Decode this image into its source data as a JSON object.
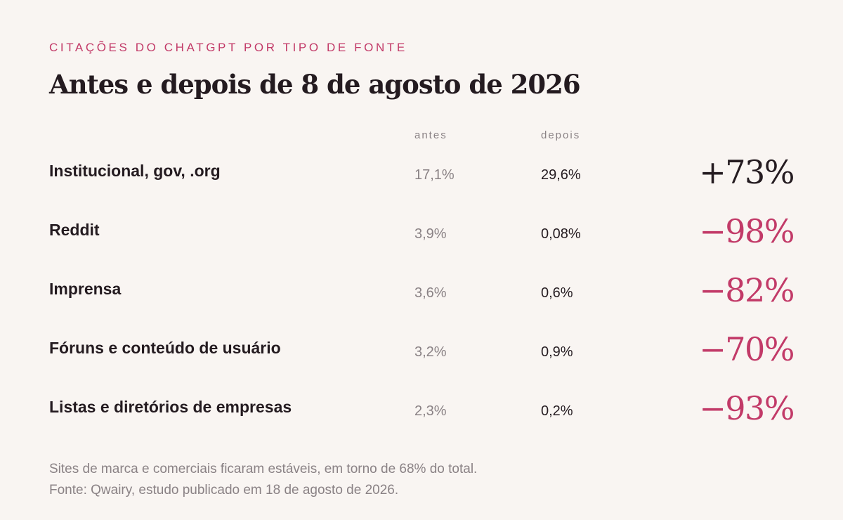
{
  "eyebrow": "CITAÇÕES DO CHATGPT POR TIPO DE FONTE",
  "title": "Antes e depois de 8 de agosto de 2026",
  "colors": {
    "background": "#f9f5f2",
    "text": "#241b20",
    "accent": "#c23a68",
    "muted": "#8a8285"
  },
  "chart_data": {
    "type": "table",
    "columns": [
      "antes",
      "depois"
    ],
    "rows": [
      {
        "label": "Institucional, gov, .org",
        "antes": "17,1%",
        "depois": "29,6%",
        "change": "+73%",
        "direction": "up"
      },
      {
        "label": "Reddit",
        "antes": "3,9%",
        "depois": "0,08%",
        "change": "−98%",
        "direction": "down"
      },
      {
        "label": "Imprensa",
        "antes": "3,6%",
        "depois": "0,6%",
        "change": "−82%",
        "direction": "down"
      },
      {
        "label": "Fóruns e conteúdo de usuário",
        "antes": "3,2%",
        "depois": "0,9%",
        "change": "−70%",
        "direction": "down"
      },
      {
        "label": "Listas e diretórios de empresas",
        "antes": "2,3%",
        "depois": "0,2%",
        "change": "−93%",
        "direction": "down"
      }
    ]
  },
  "footer": {
    "note": "Sites de marca e comerciais ficaram estáveis, em torno de 68% do total.",
    "source": "Fonte: Qwairy, estudo publicado em 18 de agosto de 2026."
  }
}
